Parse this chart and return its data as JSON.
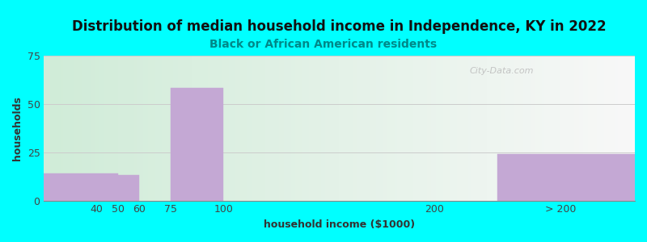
{
  "title": "Distribution of median household income in Independence, KY in 2022",
  "subtitle": "Black or African American residents",
  "xlabel": "household income ($1000)",
  "ylabel": "households",
  "background_outer": "#00FFFF",
  "bar_color": "#c4a8d4",
  "bar_edgecolor": "#c4a8d4",
  "ylim": [
    0,
    75
  ],
  "yticks": [
    0,
    25,
    50,
    75
  ],
  "xtick_labels": [
    "40",
    "50",
    "60",
    "75",
    "100",
    "200",
    "> 200"
  ],
  "xtick_positions": [
    40,
    50,
    60,
    75,
    100,
    200,
    260
  ],
  "xlim": [
    15,
    295
  ],
  "bars": [
    {
      "x_left": 15,
      "x_right": 50,
      "height": 14
    },
    {
      "x_left": 50,
      "x_right": 60,
      "height": 13
    },
    {
      "x_left": 75,
      "x_right": 100,
      "height": 58
    },
    {
      "x_left": 230,
      "x_right": 295,
      "height": 24
    }
  ],
  "title_fontsize": 12,
  "subtitle_fontsize": 10,
  "label_fontsize": 9,
  "tick_fontsize": 9,
  "watermark": "City-Data.com",
  "gradient_left_color": "#d0ecd8",
  "gradient_right_color": "#f8f8f8"
}
